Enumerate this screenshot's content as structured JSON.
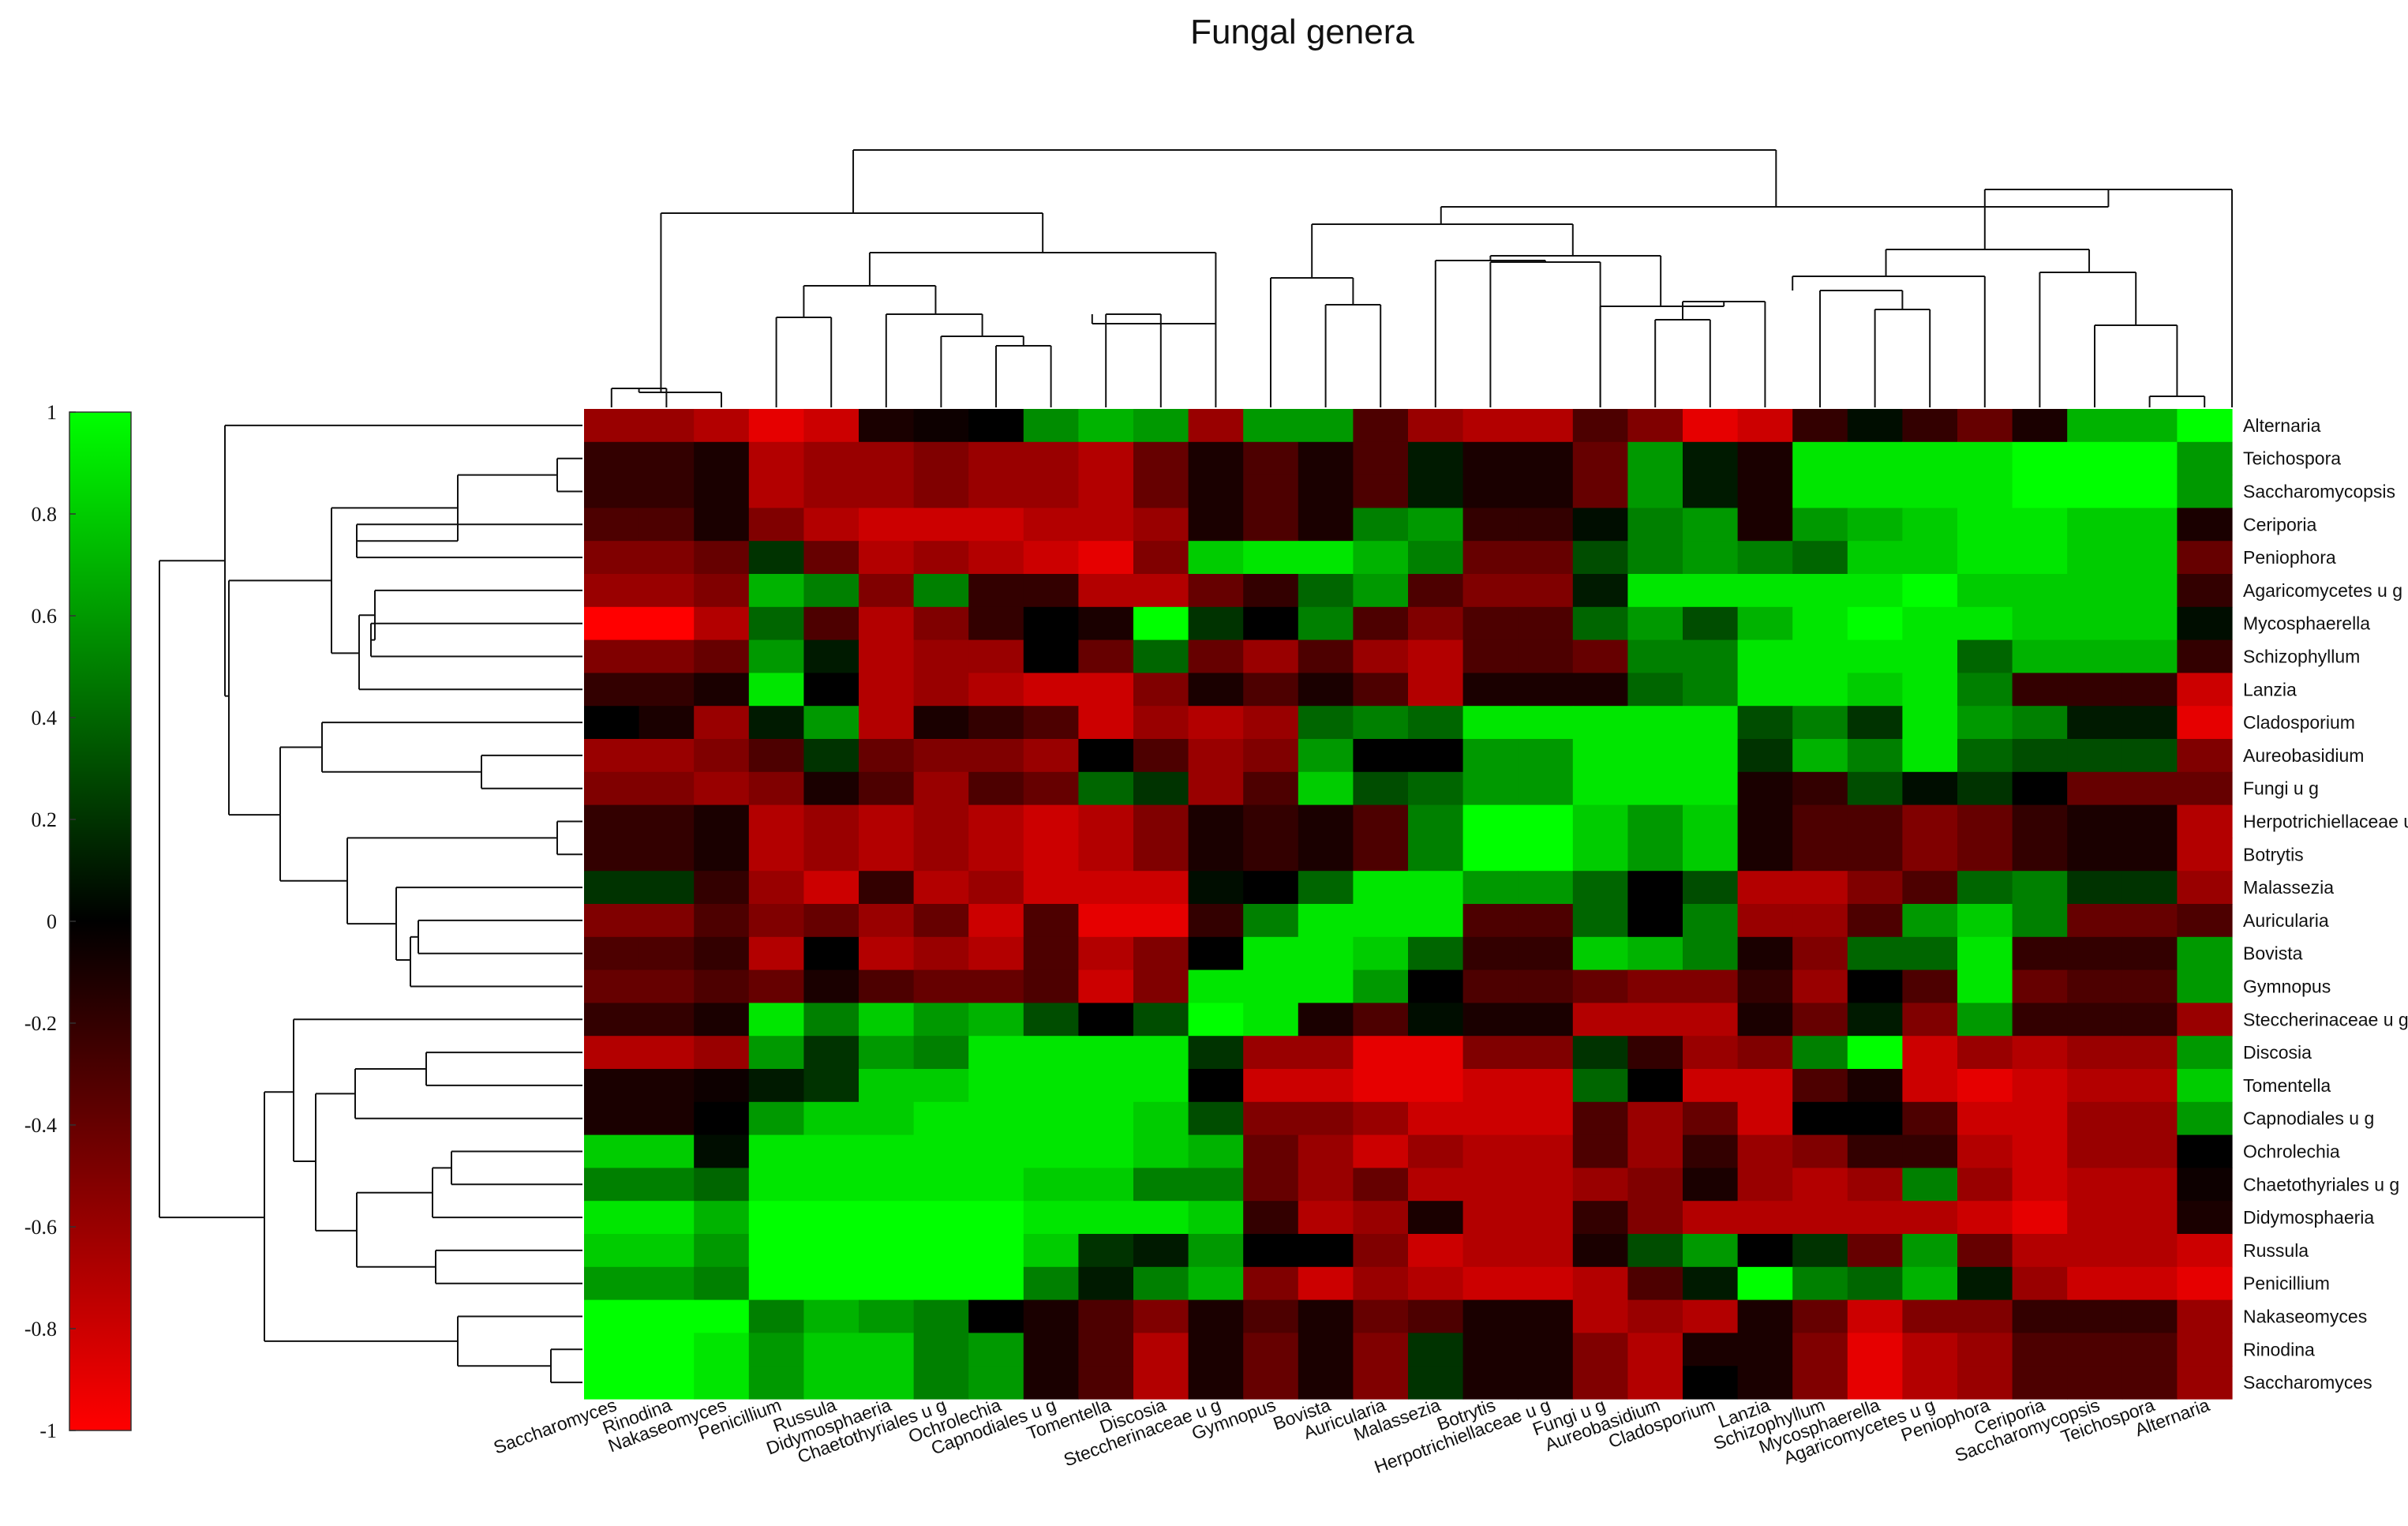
{
  "chart_data": {
    "type": "heatmap",
    "title": "Fungal genera",
    "colorbar": {
      "min": -1,
      "max": 1,
      "ticks": [
        1,
        0.8,
        0.6,
        0.4,
        0.2,
        0,
        -0.2,
        -0.4,
        -0.6,
        -0.8,
        -1
      ],
      "colors": [
        "#ff0000",
        "#000000",
        "#00ff00"
      ]
    },
    "rows": [
      "Alternaria",
      "Teichospora",
      "Saccharomycopsis",
      "Ceriporia",
      "Peniophora",
      "Agaricomycetes u g",
      "Mycosphaerella",
      "Schizophyllum",
      "Lanzia",
      "Cladosporium",
      "Aureobasidium",
      "Fungi u g",
      "Herpotrichiellaceae u g",
      "Botrytis",
      "Malassezia",
      "Auricularia",
      "Bovista",
      "Gymnopus",
      "Steccherinaceae u g",
      "Discosia",
      "Tomentella",
      "Capnodiales u g",
      "Ochrolechia",
      "Chaetothyriales u g",
      "Didymosphaeria",
      "Russula",
      "Penicillium",
      "Nakaseomyces",
      "Rinodina",
      "Saccharomyces"
    ],
    "columns": [
      "Saccharomyces",
      "Rinodina",
      "Nakaseomyces",
      "Penicillium",
      "Russula",
      "Didymosphaeria",
      "Chaetothyriales u g",
      "Ochrolechia",
      "Capnodiales u g",
      "Tomentella",
      "Discosia",
      "Steccherinaceae u g",
      "Gymnopus",
      "Bovista",
      "Auricularia",
      "Malassezia",
      "Botrytis",
      "Herpotrichiellaceae u g",
      "Fungi u g",
      "Aureobasidium",
      "Cladosporium",
      "Lanzia",
      "Schizophyllum",
      "Mycosphaerella",
      "Agaricomycetes u g",
      "Peniophora",
      "Ceriporia",
      "Saccharomycopsis",
      "Teichospora",
      "Alternaria"
    ],
    "values": [
      [
        -0.6,
        -0.6,
        -0.7,
        -0.9,
        -0.8,
        -0.1,
        -0.05,
        0.0,
        0.55,
        0.7,
        0.6,
        -0.6,
        0.6,
        0.6,
        -0.3,
        -0.6,
        -0.7,
        -0.7,
        -0.3,
        -0.5,
        -0.9,
        -0.8,
        -0.2,
        0.05,
        -0.2,
        -0.4,
        -0.1,
        0.7,
        0.7,
        1.0
      ],
      [
        -0.2,
        -0.2,
        -0.1,
        -0.7,
        -0.6,
        -0.6,
        -0.5,
        -0.6,
        -0.6,
        -0.7,
        -0.4,
        -0.1,
        -0.3,
        -0.1,
        -0.3,
        0.1,
        -0.1,
        -0.1,
        -0.4,
        0.6,
        0.1,
        -0.1,
        0.9,
        0.9,
        0.9,
        0.9,
        1.0,
        1.0,
        1.0,
        0.6
      ],
      [
        -0.2,
        -0.2,
        -0.1,
        -0.7,
        -0.6,
        -0.6,
        -0.5,
        -0.6,
        -0.6,
        -0.7,
        -0.4,
        -0.1,
        -0.3,
        -0.1,
        -0.3,
        0.1,
        -0.1,
        -0.1,
        -0.4,
        0.6,
        0.1,
        -0.1,
        0.9,
        0.9,
        0.9,
        0.9,
        1.0,
        1.0,
        1.0,
        0.6
      ],
      [
        -0.3,
        -0.3,
        -0.1,
        -0.5,
        -0.7,
        -0.8,
        -0.8,
        -0.8,
        -0.7,
        -0.7,
        -0.6,
        -0.1,
        -0.3,
        -0.1,
        0.5,
        0.6,
        -0.2,
        -0.2,
        0.05,
        0.5,
        0.6,
        -0.1,
        0.6,
        0.7,
        0.8,
        0.9,
        0.9,
        0.8,
        0.8,
        -0.1
      ],
      [
        -0.5,
        -0.5,
        -0.4,
        0.2,
        -0.4,
        -0.7,
        -0.6,
        -0.7,
        -0.8,
        -0.9,
        -0.5,
        0.8,
        0.9,
        0.9,
        0.7,
        0.5,
        -0.4,
        -0.4,
        0.3,
        0.5,
        0.6,
        0.5,
        0.4,
        0.8,
        0.8,
        0.9,
        0.9,
        0.8,
        0.8,
        -0.4
      ],
      [
        -0.6,
        -0.6,
        -0.5,
        0.7,
        0.5,
        -0.5,
        0.5,
        -0.2,
        -0.2,
        -0.7,
        -0.7,
        -0.4,
        -0.2,
        0.4,
        0.6,
        -0.3,
        -0.5,
        -0.5,
        0.1,
        0.9,
        0.9,
        0.9,
        0.9,
        0.9,
        1.0,
        0.8,
        0.8,
        0.8,
        0.8,
        -0.2
      ],
      [
        -1.0,
        -1.0,
        -0.7,
        0.4,
        -0.3,
        -0.7,
        -0.5,
        -0.2,
        0.0,
        -0.1,
        1.0,
        0.2,
        0.0,
        0.5,
        -0.3,
        -0.5,
        -0.3,
        -0.3,
        0.4,
        0.6,
        0.3,
        0.7,
        0.9,
        1.0,
        0.9,
        0.9,
        0.8,
        0.8,
        0.8,
        0.05
      ],
      [
        -0.5,
        -0.5,
        -0.4,
        0.6,
        0.1,
        -0.7,
        -0.6,
        -0.6,
        0.0,
        -0.4,
        0.4,
        -0.4,
        -0.6,
        -0.3,
        -0.6,
        -0.7,
        -0.3,
        -0.3,
        -0.4,
        0.5,
        0.5,
        0.9,
        0.9,
        0.9,
        0.9,
        0.4,
        0.7,
        0.7,
        0.7,
        -0.2
      ],
      [
        -0.2,
        -0.2,
        -0.1,
        0.9,
        0.0,
        -0.7,
        -0.6,
        -0.7,
        -0.8,
        -0.8,
        -0.5,
        -0.1,
        -0.3,
        -0.1,
        -0.3,
        -0.7,
        -0.1,
        -0.1,
        -0.1,
        0.4,
        0.5,
        0.9,
        0.9,
        0.8,
        0.9,
        0.5,
        -0.2,
        -0.2,
        -0.2,
        -0.8
      ],
      [
        0.0,
        -0.1,
        -0.6,
        0.1,
        0.6,
        -0.7,
        -0.1,
        -0.2,
        -0.3,
        -0.8,
        -0.6,
        -0.7,
        -0.6,
        0.4,
        0.5,
        0.4,
        0.9,
        0.9,
        0.9,
        0.9,
        0.9,
        0.3,
        0.5,
        0.2,
        0.9,
        0.6,
        0.5,
        0.1,
        0.1,
        -0.9
      ],
      [
        -0.6,
        -0.6,
        -0.5,
        -0.3,
        0.2,
        -0.4,
        -0.5,
        -0.5,
        -0.6,
        0.0,
        -0.3,
        -0.6,
        -0.5,
        0.6,
        0.0,
        0.0,
        0.6,
        0.6,
        0.9,
        0.9,
        0.9,
        0.2,
        0.7,
        0.5,
        0.9,
        0.4,
        0.3,
        0.3,
        0.3,
        -0.5
      ],
      [
        -0.5,
        -0.5,
        -0.6,
        -0.5,
        -0.1,
        -0.3,
        -0.6,
        -0.3,
        -0.4,
        0.4,
        0.2,
        -0.6,
        -0.3,
        0.8,
        0.3,
        0.4,
        0.6,
        0.6,
        0.9,
        0.9,
        0.9,
        -0.1,
        -0.2,
        0.3,
        0.05,
        0.2,
        0.0,
        -0.4,
        -0.4,
        -0.4
      ],
      [
        -0.2,
        -0.2,
        -0.1,
        -0.7,
        -0.6,
        -0.7,
        -0.6,
        -0.7,
        -0.8,
        -0.7,
        -0.5,
        -0.1,
        -0.2,
        -0.1,
        -0.3,
        0.5,
        1.0,
        1.0,
        0.8,
        0.6,
        0.8,
        -0.1,
        -0.3,
        -0.3,
        -0.5,
        -0.4,
        -0.2,
        -0.1,
        -0.1,
        -0.7
      ],
      [
        -0.2,
        -0.2,
        -0.1,
        -0.7,
        -0.6,
        -0.7,
        -0.6,
        -0.7,
        -0.8,
        -0.7,
        -0.5,
        -0.1,
        -0.2,
        -0.1,
        -0.3,
        0.5,
        1.0,
        1.0,
        0.8,
        0.6,
        0.8,
        -0.1,
        -0.3,
        -0.3,
        -0.5,
        -0.4,
        -0.2,
        -0.1,
        -0.1,
        -0.7
      ],
      [
        0.2,
        0.2,
        -0.2,
        -0.6,
        -0.8,
        -0.2,
        -0.7,
        -0.6,
        -0.8,
        -0.8,
        -0.8,
        0.05,
        0.0,
        0.4,
        0.9,
        0.9,
        0.6,
        0.6,
        0.4,
        0.0,
        0.3,
        -0.7,
        -0.7,
        -0.5,
        -0.3,
        0.4,
        0.5,
        0.2,
        0.2,
        -0.6
      ],
      [
        -0.5,
        -0.5,
        -0.3,
        -0.5,
        -0.4,
        -0.6,
        -0.4,
        -0.8,
        -0.3,
        -0.9,
        -0.9,
        -0.2,
        0.5,
        0.9,
        0.9,
        0.9,
        -0.3,
        -0.3,
        0.4,
        0.0,
        0.5,
        -0.6,
        -0.6,
        -0.3,
        0.6,
        0.8,
        0.5,
        -0.4,
        -0.4,
        -0.3
      ],
      [
        -0.3,
        -0.3,
        -0.2,
        -0.7,
        0.0,
        -0.7,
        -0.6,
        -0.7,
        -0.3,
        -0.7,
        -0.5,
        0.0,
        0.9,
        0.9,
        0.8,
        0.4,
        -0.2,
        -0.2,
        0.8,
        0.7,
        0.5,
        -0.1,
        -0.5,
        0.4,
        0.4,
        0.9,
        -0.2,
        -0.2,
        -0.2,
        0.6
      ],
      [
        -0.4,
        -0.4,
        -0.3,
        -0.4,
        -0.1,
        -0.3,
        -0.4,
        -0.4,
        -0.3,
        -0.8,
        -0.5,
        0.9,
        0.9,
        0.9,
        0.6,
        0.0,
        -0.3,
        -0.3,
        -0.4,
        -0.5,
        -0.5,
        -0.2,
        -0.6,
        0.0,
        -0.3,
        0.9,
        -0.4,
        -0.3,
        -0.3,
        0.6
      ],
      [
        -0.2,
        -0.2,
        -0.1,
        0.9,
        0.5,
        0.8,
        0.6,
        0.7,
        0.3,
        0.0,
        0.3,
        1.0,
        0.9,
        -0.1,
        -0.3,
        0.05,
        -0.1,
        -0.1,
        -0.7,
        -0.7,
        -0.7,
        -0.1,
        -0.4,
        0.1,
        -0.5,
        0.6,
        -0.2,
        -0.2,
        -0.2,
        -0.6
      ],
      [
        -0.7,
        -0.7,
        -0.6,
        0.6,
        0.2,
        0.6,
        0.5,
        0.9,
        0.9,
        0.9,
        0.9,
        0.2,
        -0.6,
        -0.6,
        -0.9,
        -0.9,
        -0.5,
        -0.5,
        0.2,
        -0.2,
        -0.6,
        -0.5,
        0.5,
        1.0,
        -0.8,
        -0.6,
        -0.7,
        -0.6,
        -0.6,
        0.6
      ],
      [
        -0.1,
        -0.1,
        -0.05,
        0.1,
        0.2,
        0.8,
        0.8,
        0.9,
        0.9,
        0.9,
        0.9,
        0.0,
        -0.8,
        -0.8,
        -0.9,
        -0.9,
        -0.8,
        -0.8,
        0.4,
        0.0,
        -0.8,
        -0.8,
        -0.3,
        -0.1,
        -0.8,
        -0.9,
        -0.8,
        -0.7,
        -0.7,
        0.8
      ],
      [
        -0.1,
        -0.1,
        0.0,
        0.6,
        0.8,
        0.8,
        0.9,
        0.9,
        0.9,
        0.9,
        0.8,
        0.3,
        -0.5,
        -0.5,
        -0.6,
        -0.8,
        -0.8,
        -0.8,
        -0.3,
        -0.6,
        -0.4,
        -0.8,
        0.0,
        0.0,
        -0.3,
        -0.8,
        -0.8,
        -0.6,
        -0.6,
        0.6
      ],
      [
        0.8,
        0.8,
        0.05,
        0.9,
        0.9,
        0.9,
        0.9,
        0.9,
        0.9,
        0.9,
        0.8,
        0.7,
        -0.4,
        -0.6,
        -0.8,
        -0.6,
        -0.7,
        -0.7,
        -0.3,
        -0.6,
        -0.2,
        -0.6,
        -0.5,
        -0.2,
        -0.2,
        -0.7,
        -0.8,
        -0.6,
        -0.6,
        0.0
      ],
      [
        0.5,
        0.5,
        0.4,
        0.9,
        0.9,
        0.9,
        0.9,
        0.9,
        0.8,
        0.8,
        0.5,
        0.5,
        -0.4,
        -0.6,
        -0.4,
        -0.7,
        -0.7,
        -0.7,
        -0.6,
        -0.5,
        -0.1,
        -0.6,
        -0.7,
        -0.6,
        0.5,
        -0.6,
        -0.8,
        -0.7,
        -0.7,
        -0.05
      ],
      [
        0.9,
        0.9,
        0.7,
        1.0,
        1.0,
        1.0,
        1.0,
        1.0,
        0.9,
        0.9,
        0.9,
        0.8,
        -0.2,
        -0.7,
        -0.6,
        -0.1,
        -0.7,
        -0.7,
        -0.2,
        -0.5,
        -0.7,
        -0.7,
        -0.7,
        -0.7,
        -0.7,
        -0.8,
        -0.9,
        -0.7,
        -0.7,
        -0.1
      ],
      [
        0.8,
        0.8,
        0.6,
        1.0,
        1.0,
        1.0,
        1.0,
        1.0,
        0.8,
        0.2,
        0.1,
        0.6,
        0.0,
        0.0,
        -0.5,
        -0.8,
        -0.7,
        -0.7,
        -0.1,
        0.3,
        0.6,
        0.0,
        0.2,
        -0.4,
        0.6,
        -0.4,
        -0.7,
        -0.7,
        -0.7,
        -0.8
      ],
      [
        0.6,
        0.6,
        0.5,
        1.0,
        1.0,
        1.0,
        1.0,
        1.0,
        0.5,
        0.1,
        0.5,
        0.7,
        -0.5,
        -0.8,
        -0.6,
        -0.7,
        -0.8,
        -0.8,
        -0.7,
        -0.3,
        0.1,
        1.0,
        0.5,
        0.4,
        0.7,
        0.1,
        -0.6,
        -0.8,
        -0.8,
        -0.9
      ],
      [
        1.0,
        1.0,
        1.0,
        0.5,
        0.7,
        0.6,
        0.5,
        0.0,
        -0.1,
        -0.3,
        -0.5,
        -0.1,
        -0.3,
        -0.1,
        -0.4,
        -0.3,
        -0.1,
        -0.1,
        -0.7,
        -0.6,
        -0.7,
        -0.1,
        -0.4,
        -0.8,
        -0.5,
        -0.5,
        -0.2,
        -0.2,
        -0.2,
        -0.6
      ],
      [
        1.0,
        1.0,
        0.9,
        0.6,
        0.8,
        0.8,
        0.5,
        0.6,
        -0.1,
        -0.3,
        -0.7,
        -0.1,
        -0.4,
        -0.1,
        -0.5,
        0.2,
        -0.1,
        -0.1,
        -0.5,
        -0.7,
        -0.1,
        -0.1,
        -0.5,
        -0.9,
        -0.7,
        -0.6,
        -0.3,
        -0.3,
        -0.3,
        -0.6
      ],
      [
        1.0,
        1.0,
        0.9,
        0.6,
        0.8,
        0.8,
        0.5,
        0.6,
        -0.1,
        -0.3,
        -0.7,
        -0.1,
        -0.4,
        -0.1,
        -0.5,
        0.2,
        -0.1,
        -0.1,
        -0.5,
        -0.7,
        0.0,
        -0.1,
        -0.5,
        -0.9,
        -0.7,
        -0.6,
        -0.3,
        -0.3,
        -0.3,
        -0.6
      ]
    ],
    "column_dendrogram": [
      [
        0,
        1,
        0.02
      ],
      [
        28,
        29,
        0.1
      ],
      [
        32,
        30,
        0.14
      ],
      [
        31,
        2,
        0.2
      ],
      [
        13,
        14,
        0.45
      ],
      [
        6,
        7,
        0.5
      ],
      [
        17,
        18,
        0.55
      ],
      [
        36,
        8,
        0.55
      ],
      [
        33,
        4,
        0.6
      ],
      [
        5,
        37,
        0.62
      ],
      [
        15,
        16,
        0.7
      ],
      [
        27,
        28,
        0.05
      ],
      [
        22,
        23,
        0.8
      ],
      [
        20,
        21,
        0.95
      ],
      [
        25,
        26,
        0.85
      ],
      [
        44,
        24,
        1.0
      ],
      [
        40,
        19,
        1.05
      ],
      [
        42,
        43,
        1.1
      ],
      [
        39,
        34,
        1.2
      ],
      [
        45,
        46,
        1.25
      ],
      [
        12,
        30,
        1.4
      ],
      [
        47,
        48,
        1.55
      ],
      [
        49,
        9,
        1.6
      ],
      [
        50,
        51,
        1.8
      ],
      [
        52,
        11,
        1.9
      ],
      [
        53,
        10,
        2.0
      ],
      [
        54,
        3,
        2.2
      ],
      [
        55,
        56,
        2.5
      ],
      [
        57,
        58,
        3.0
      ]
    ],
    "row_dendrogram": [
      [
        1,
        2,
        0.0
      ],
      [
        12,
        13,
        0.0
      ],
      [
        28,
        29,
        0.05
      ],
      [
        3,
        30,
        0.6
      ],
      [
        27,
        32,
        0.5
      ]
    ]
  }
}
